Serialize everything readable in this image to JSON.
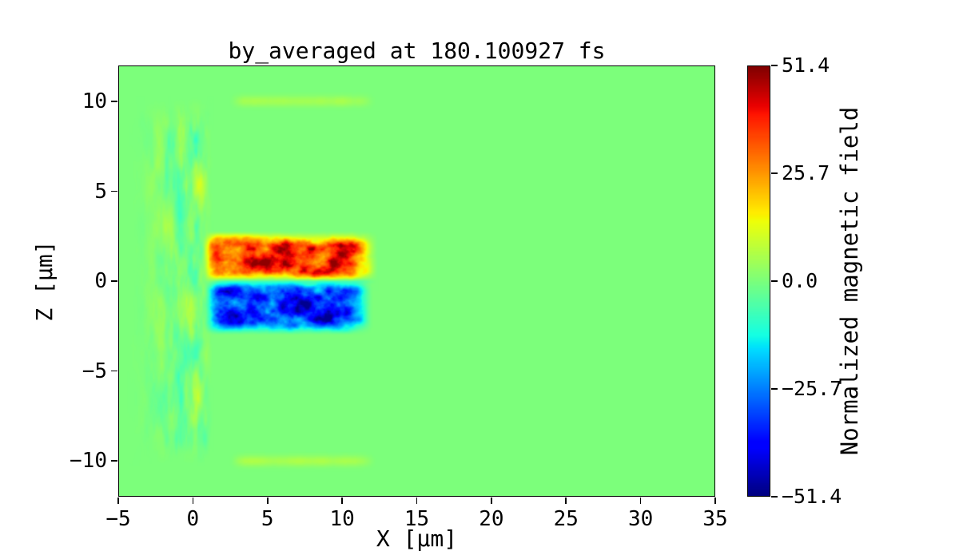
{
  "figure": {
    "background": "#ffffff",
    "text_color": "#000000"
  },
  "chart_data": {
    "type": "heatmap",
    "title": "by_averaged at 180.100927 fs",
    "xlabel": "X [μm]",
    "ylabel": "Z [μm]",
    "xlim": [
      -5,
      35
    ],
    "ylim": [
      -12,
      12
    ],
    "xticks": [
      -5,
      0,
      5,
      10,
      15,
      20,
      25,
      30,
      35
    ],
    "xtick_labels": [
      "−5",
      "0",
      "5",
      "10",
      "15",
      "20",
      "25",
      "30",
      "35"
    ],
    "yticks": [
      -10,
      -5,
      0,
      5,
      10
    ],
    "ytick_labels": [
      "−10",
      "−5",
      "0",
      "5",
      "10"
    ],
    "grid": false,
    "colormap": "jet",
    "background_value": 0,
    "colorbar": {
      "label": "Normalized magnetic field",
      "vmin": -51.4,
      "vmax": 51.4,
      "ticks": [
        51.4,
        25.7,
        0.0,
        -25.7,
        -51.4
      ],
      "tick_labels": [
        "51.4",
        "25.7",
        "0.0",
        "−25.7",
        "−51.4"
      ]
    },
    "features": [
      {
        "name": "positive-lobe",
        "description": "ragged red/orange stripe of positive field above the axis",
        "x_range": [
          0.8,
          12.2
        ],
        "z_range": [
          0.1,
          2.6
        ],
        "peak_value": 50
      },
      {
        "name": "negative-lobe",
        "description": "ragged blue stripe of negative field below the axis",
        "x_range": [
          0.9,
          11.8
        ],
        "z_range": [
          -2.8,
          -0.1
        ],
        "peak_value": -50
      },
      {
        "name": "axis-gap-line",
        "description": "thin cyan-green gap along z=0 between the lobes",
        "x_range": [
          1,
          12
        ],
        "z_center": 0,
        "value": -5
      },
      {
        "name": "plasma-wisps",
        "description": "faint cyan/yellow vertical wisps near the target at x≈0",
        "x_range": [
          -4.5,
          1.2
        ],
        "z_range": [
          -9.8,
          9.8
        ],
        "value_range": [
          -12,
          10
        ]
      },
      {
        "name": "upper-streak",
        "description": "faint yellow horizontal streak near top boundary",
        "x_range": [
          2.3,
          12.2
        ],
        "z_center": 10.05,
        "value": 7
      },
      {
        "name": "lower-streak",
        "description": "faint yellow horizontal streak near bottom boundary",
        "x_range": [
          2.3,
          12.2
        ],
        "z_center": -10.05,
        "value": 7
      }
    ]
  }
}
